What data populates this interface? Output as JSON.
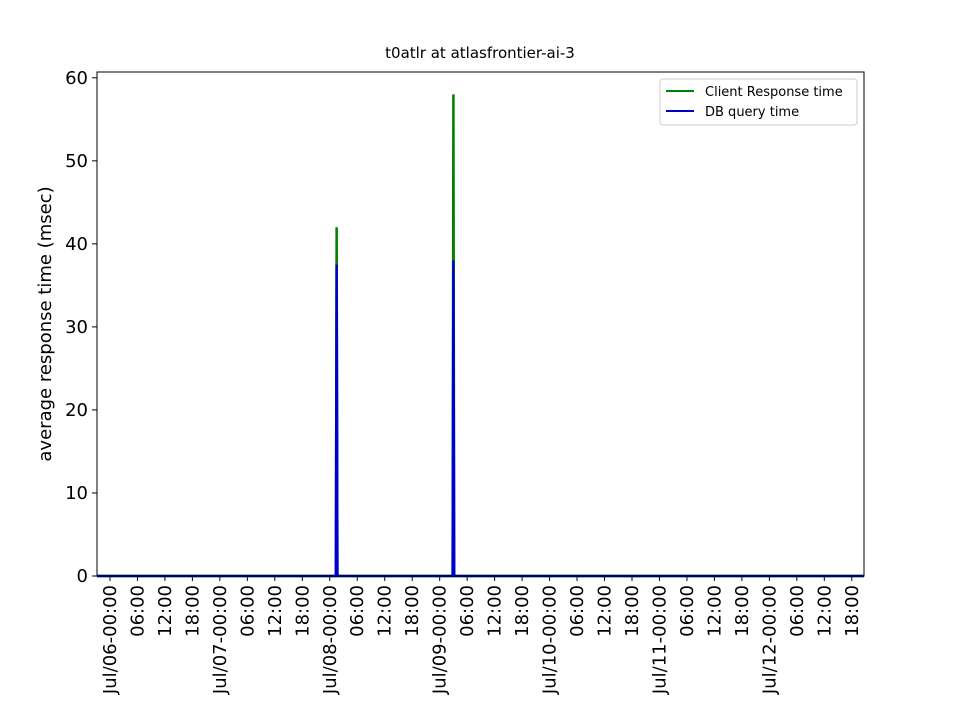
{
  "chart_data": {
    "type": "line",
    "title": "t0atlr at atlasfrontier-ai-3",
    "y_label": "average response time (msec)",
    "x": [
      "Jul/05-21:10",
      "Jul/08-01:20",
      "Jul/08-01:30",
      "Jul/08-01:40",
      "Jul/09-02:50",
      "Jul/09-03:00",
      "Jul/09-03:10",
      "Jul/12-20:40"
    ],
    "series": [
      {
        "name": "Client Response time",
        "color": "#008000",
        "values": [
          0,
          0,
          42,
          0,
          0,
          58,
          0,
          0
        ]
      },
      {
        "name": "DB query time",
        "color": "#0000cc",
        "values": [
          0,
          0,
          37.5,
          0,
          0,
          38,
          0,
          0
        ]
      }
    ],
    "xlim": [
      "Jul/05-21:10",
      "Jul/12-20:40"
    ],
    "xticks": [
      "Jul/06-00:00",
      {
        "value": "Jul/06-06:00",
        "label": "06:00"
      },
      {
        "value": "Jul/06-12:00",
        "label": "12:00"
      },
      {
        "value": "Jul/06-18:00",
        "label": "18:00"
      },
      "Jul/07-00:00",
      {
        "value": "Jul/07-06:00",
        "label": "06:00"
      },
      {
        "value": "Jul/07-12:00",
        "label": "12:00"
      },
      {
        "value": "Jul/07-18:00",
        "label": "18:00"
      },
      "Jul/08-00:00",
      {
        "value": "Jul/08-06:00",
        "label": "06:00"
      },
      {
        "value": "Jul/08-12:00",
        "label": "12:00"
      },
      {
        "value": "Jul/08-18:00",
        "label": "18:00"
      },
      "Jul/09-00:00",
      {
        "value": "Jul/09-06:00",
        "label": "06:00"
      },
      {
        "value": "Jul/09-12:00",
        "label": "12:00"
      },
      {
        "value": "Jul/09-18:00",
        "label": "18:00"
      },
      "Jul/10-00:00",
      {
        "value": "Jul/10-06:00",
        "label": "06:00"
      },
      {
        "value": "Jul/10-12:00",
        "label": "12:00"
      },
      {
        "value": "Jul/10-18:00",
        "label": "18:00"
      },
      "Jul/11-00:00",
      {
        "value": "Jul/11-06:00",
        "label": "06:00"
      },
      {
        "value": "Jul/11-12:00",
        "label": "12:00"
      },
      {
        "value": "Jul/11-18:00",
        "label": "18:00"
      },
      "Jul/12-00:00",
      {
        "value": "Jul/12-06:00",
        "label": "06:00"
      },
      {
        "value": "Jul/12-12:00",
        "label": "12:00"
      },
      {
        "value": "Jul/12-18:00",
        "label": "18:00"
      }
    ],
    "ylim": [
      0,
      60.7
    ],
    "yticks": [
      0,
      10,
      20,
      30,
      40,
      50,
      60
    ],
    "legend": "upper right"
  }
}
